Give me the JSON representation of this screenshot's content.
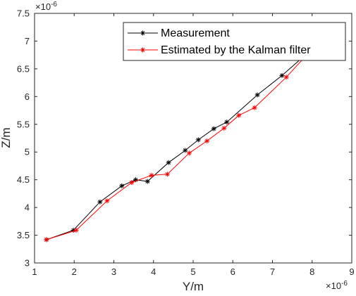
{
  "chart_data": {
    "type": "line",
    "xlabel": "Y/m",
    "ylabel": "Z/m",
    "xlim": [
      1,
      9
    ],
    "ylim": [
      3,
      7.5
    ],
    "x_exponent_label": "×10",
    "x_exponent_power": "-6",
    "y_exponent_label": "×10",
    "y_exponent_power": "-6",
    "xticks": [
      "1",
      "2",
      "3",
      "4",
      "5",
      "6",
      "7",
      "8",
      "9"
    ],
    "yticks": [
      "3",
      "3.5",
      "4",
      "4.5",
      "5",
      "5.5",
      "6",
      "6.5",
      "7",
      "7.5"
    ],
    "grid": false,
    "legend_position": "top-right",
    "series": [
      {
        "name": "Measurement",
        "color": "#000000",
        "marker": "asterisk",
        "points": [
          [
            1.3,
            3.42
          ],
          [
            1.98,
            3.59
          ],
          [
            2.65,
            4.1
          ],
          [
            3.2,
            4.39
          ],
          [
            3.55,
            4.5
          ],
          [
            3.85,
            4.47
          ],
          [
            4.38,
            4.81
          ],
          [
            4.8,
            5.03
          ],
          [
            5.13,
            5.22
          ],
          [
            5.52,
            5.42
          ],
          [
            5.85,
            5.54
          ],
          [
            6.62,
            6.03
          ],
          [
            7.24,
            6.38
          ],
          [
            7.75,
            6.7
          ],
          [
            7.95,
            6.83
          ]
        ]
      },
      {
        "name": "Estimated by the Kalman filter",
        "color": "#ff0000",
        "marker": "asterisk",
        "points": [
          [
            1.3,
            3.42
          ],
          [
            2.05,
            3.59
          ],
          [
            2.83,
            4.12
          ],
          [
            3.45,
            4.45
          ],
          [
            3.95,
            4.58
          ],
          [
            4.35,
            4.6
          ],
          [
            4.9,
            4.98
          ],
          [
            5.35,
            5.2
          ],
          [
            5.78,
            5.43
          ],
          [
            6.15,
            5.66
          ],
          [
            6.55,
            5.8
          ],
          [
            7.35,
            6.35
          ],
          [
            7.85,
            6.74
          ],
          [
            7.98,
            6.82
          ]
        ]
      }
    ]
  }
}
